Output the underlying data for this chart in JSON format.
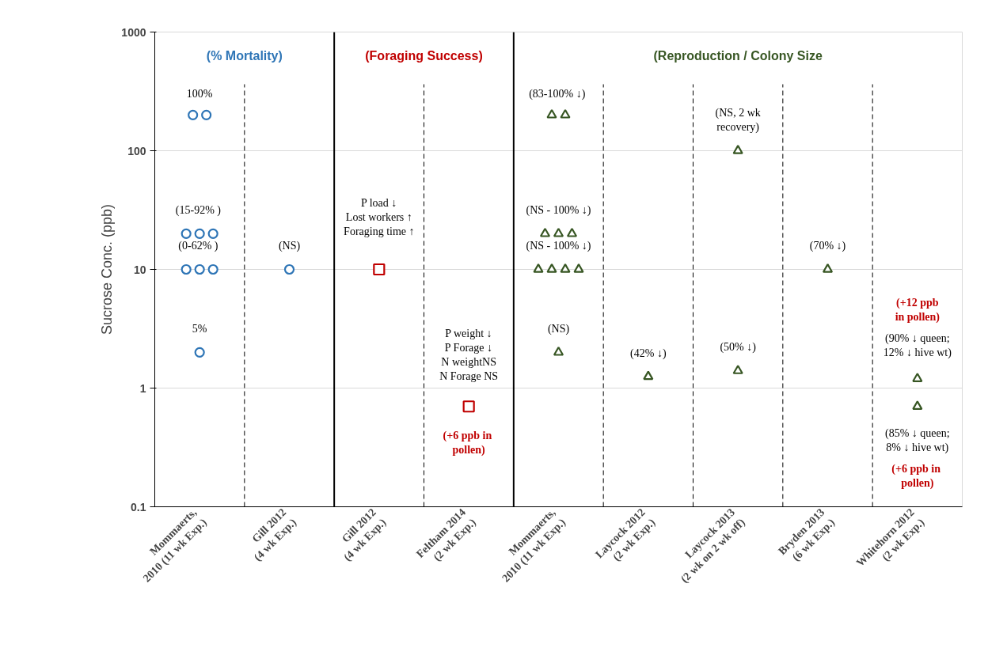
{
  "chart_data": {
    "type": "scatter",
    "ylabel": "Sucrose Conc. (ppb)",
    "log": "y",
    "ylim": [
      0.1,
      1000
    ],
    "yticks": [
      0.1,
      1,
      10,
      100,
      1000
    ],
    "grid": "y",
    "categories": [
      "Mommaerts,\n2010 (11 wk Exp.)",
      "Gill 2012\n(4 wk Exp.)",
      "Gill 2012\n(4 wk Exp.)",
      "Feltham 2014\n(2 wk Exp.)",
      "Mommaerts,\n2010 (11 wk Exp.)",
      "Laycock 2012\n(2 wk Exp.)",
      "Laycock 2013\n(2 wk on 2 wk off)",
      "Bryden 2013\n(6 wk Exp.)",
      "Whitehorn 2012\n(2 wk Exp.)"
    ],
    "series": [
      {
        "color": "#2e75b6",
        "marker": "circle",
        "values": [
          200,
          10,
          null,
          null,
          null,
          null,
          null,
          null,
          null
        ]
      },
      {
        "color": "#2e75b6",
        "marker": "circle",
        "values": [
          200,
          null,
          null,
          null,
          null,
          null,
          null,
          null,
          null
        ]
      },
      {
        "color": "#2e75b6",
        "marker": "circle",
        "values": [
          20,
          null,
          null,
          null,
          null,
          null,
          null,
          null,
          null
        ]
      },
      {
        "color": "#2e75b6",
        "marker": "circle",
        "values": [
          20,
          null,
          null,
          null,
          null,
          null,
          null,
          null,
          null
        ]
      },
      {
        "color": "#2e75b6",
        "marker": "circle",
        "values": [
          20,
          null,
          null,
          null,
          null,
          null,
          null,
          null,
          null
        ]
      },
      {
        "color": "#2e75b6",
        "marker": "circle",
        "values": [
          10,
          null,
          null,
          null,
          null,
          null,
          null,
          null,
          null
        ]
      },
      {
        "color": "#2e75b6",
        "marker": "circle",
        "values": [
          10,
          null,
          null,
          null,
          null,
          null,
          null,
          null,
          null
        ]
      },
      {
        "color": "#2e75b6",
        "marker": "circle",
        "values": [
          10,
          null,
          null,
          null,
          null,
          null,
          null,
          null,
          null
        ]
      },
      {
        "color": "#2e75b6",
        "marker": "circle",
        "values": [
          2,
          null,
          null,
          null,
          null,
          null,
          null,
          null,
          null
        ]
      },
      {
        "color": "#c00000",
        "marker": "square",
        "values": [
          null,
          null,
          10,
          0.7,
          null,
          null,
          null,
          null,
          null
        ]
      },
      {
        "color": "#375623",
        "marker": "triangle",
        "values": [
          null,
          null,
          null,
          null,
          200,
          1.25,
          100,
          10,
          1.2
        ]
      },
      {
        "color": "#375623",
        "marker": "triangle",
        "values": [
          null,
          null,
          null,
          null,
          200,
          null,
          1.4,
          null,
          0.7
        ]
      },
      {
        "color": "#375623",
        "marker": "triangle",
        "values": [
          null,
          null,
          null,
          null,
          20,
          null,
          null,
          null,
          null
        ]
      },
      {
        "color": "#375623",
        "marker": "triangle",
        "values": [
          null,
          null,
          null,
          null,
          20,
          null,
          null,
          null,
          null
        ]
      },
      {
        "color": "#375623",
        "marker": "triangle",
        "values": [
          null,
          null,
          null,
          null,
          20,
          null,
          null,
          null,
          null
        ]
      },
      {
        "color": "#375623",
        "marker": "triangle",
        "values": [
          null,
          null,
          null,
          null,
          10,
          null,
          null,
          null,
          null
        ]
      },
      {
        "color": "#375623",
        "marker": "triangle",
        "values": [
          null,
          null,
          null,
          null,
          10,
          null,
          null,
          null,
          null
        ]
      },
      {
        "color": "#375623",
        "marker": "triangle",
        "values": [
          null,
          null,
          null,
          null,
          10,
          null,
          null,
          null,
          null
        ]
      },
      {
        "color": "#375623",
        "marker": "triangle",
        "values": [
          null,
          null,
          null,
          null,
          10,
          null,
          null,
          null,
          null
        ]
      },
      {
        "color": "#375623",
        "marker": "triangle",
        "values": [
          null,
          null,
          null,
          null,
          2,
          null,
          null,
          null,
          null
        ]
      }
    ],
    "annotations": [
      "(% Mortality)",
      "(Foraging Success)",
      "(Reproduction / Colony Size",
      "100%",
      "(15-92%  )",
      "(0-62%  )",
      "5%",
      "(NS)",
      "P load ↓\nLost workers ↑\nForaging time ↑",
      "P weight ↓\nP Forage ↓\nN weightNS\nN Forage NS",
      "(+6 ppb  in\npollen)",
      "(83-100%  ↓)",
      "(NS - 100% ↓)",
      "(NS - 100% ↓)",
      "(NS)",
      "(42% ↓)",
      "(NS, 2 wk\nrecovery)",
      "(50% ↓)",
      "(70% ↓)",
      "(+12 ppb\nin pollen)",
      "(90% ↓ queen;\n12% ↓ hive wt)",
      "(85% ↓ queen;\n8% ↓ hive wt)",
      "(+6 ppb  in\npollen)"
    ]
  }
}
